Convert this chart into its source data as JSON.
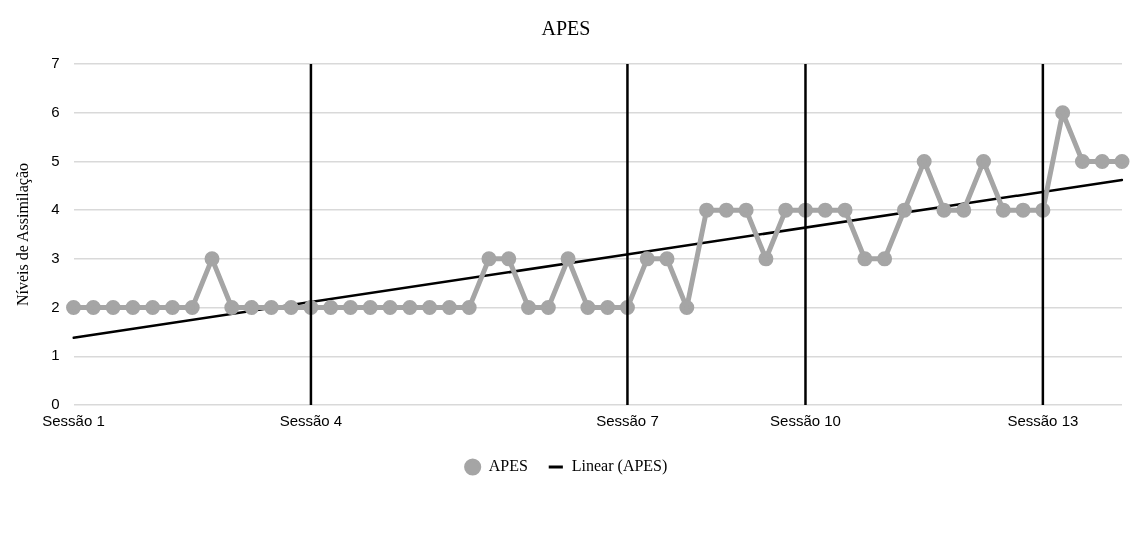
{
  "chart_data": {
    "type": "line",
    "title": "APES",
    "ylabel": "Níveis de Assimilação",
    "categories": [
      "Sessão 1",
      null,
      null,
      null,
      null,
      null,
      null,
      null,
      null,
      null,
      null,
      null,
      "Sessão 4",
      null,
      null,
      null,
      null,
      null,
      null,
      null,
      null,
      null,
      null,
      null,
      null,
      null,
      null,
      null,
      "Sessão 7",
      null,
      null,
      null,
      null,
      null,
      null,
      null,
      null,
      "Sessão 10",
      null,
      null,
      null,
      null,
      null,
      null,
      null,
      null,
      null,
      null,
      null,
      "Sessão 13",
      null,
      null,
      null,
      null
    ],
    "series": [
      {
        "name": "APES",
        "color": "#a5a5a5",
        "marker": "circle",
        "values": [
          2,
          2,
          2,
          2,
          2,
          2,
          2,
          3,
          2,
          2,
          2,
          2,
          2,
          2,
          2,
          2,
          2,
          2,
          2,
          2,
          2,
          3,
          3,
          2,
          2,
          3,
          2,
          2,
          2,
          3,
          3,
          2,
          4,
          4,
          4,
          3,
          4,
          4,
          4,
          4,
          3,
          3,
          4,
          5,
          4,
          4,
          5,
          4,
          4,
          4,
          6,
          5,
          5,
          5
        ]
      },
      {
        "name": "Linear (APES)",
        "color": "#000000",
        "marker": "none",
        "values": [
          1.38,
          null,
          null,
          null,
          null,
          null,
          null,
          null,
          null,
          null,
          null,
          null,
          null,
          null,
          null,
          null,
          null,
          null,
          null,
          null,
          null,
          null,
          null,
          null,
          null,
          null,
          null,
          null,
          null,
          null,
          null,
          null,
          null,
          null,
          null,
          null,
          null,
          null,
          null,
          null,
          null,
          null,
          null,
          null,
          null,
          null,
          null,
          null,
          null,
          null,
          null,
          null,
          null,
          4.62
        ]
      }
    ],
    "ylim": [
      0,
      7
    ],
    "yticks": [
      0,
      1,
      2,
      3,
      4,
      5,
      6,
      7
    ],
    "grid": "y",
    "legend": "bottom",
    "ref_lines": [
      {
        "axis": "x",
        "value": "Sessão 4",
        "color": "#000000"
      },
      {
        "axis": "x",
        "value": "Sessão 7",
        "color": "#000000"
      },
      {
        "axis": "x",
        "value": "Sessão 10",
        "color": "#000000"
      },
      {
        "axis": "x",
        "value": "Sessão 13",
        "color": "#000000"
      }
    ]
  }
}
